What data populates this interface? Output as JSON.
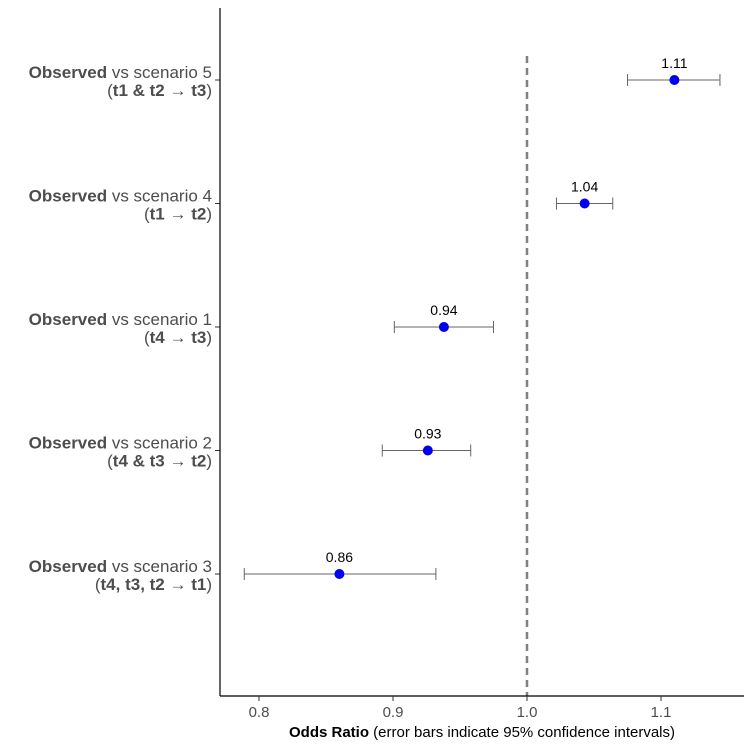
{
  "chart_data": {
    "type": "forest",
    "x_axis": {
      "title_bold": "Odds Ratio",
      "title_rest": " (error bars indicate 95% confidence intervals)",
      "ticks": [
        0.8,
        0.9,
        1.0,
        1.1
      ],
      "tick_labels": [
        "0.8",
        "0.9",
        "1.0",
        "1.1"
      ],
      "xlim": [
        0.77,
        1.16
      ]
    },
    "reference_line": {
      "x": 1.0,
      "style": "dashed",
      "color": "#808080"
    },
    "grid": false,
    "point_color": "#0000ee",
    "errorbar_color": "#666666",
    "rows": [
      {
        "label_bold": "Observed",
        "label_rest": " vs scenario 5",
        "sub_open": "(",
        "sub_bold": "t1 & t2 → t3",
        "sub_close": ")",
        "estimate": 1.11,
        "lower": 1.075,
        "upper": 1.144,
        "value_label": "1.11"
      },
      {
        "label_bold": "Observed",
        "label_rest": " vs scenario 4",
        "sub_open": "(",
        "sub_bold": "t1 → t2",
        "sub_close": ")",
        "estimate": 1.043,
        "lower": 1.022,
        "upper": 1.064,
        "value_label": "1.04"
      },
      {
        "label_bold": "Observed",
        "label_rest": " vs scenario 1",
        "sub_open": "(",
        "sub_bold": "t4 → t3",
        "sub_close": ")",
        "estimate": 0.938,
        "lower": 0.901,
        "upper": 0.975,
        "value_label": "0.94"
      },
      {
        "label_bold": "Observed",
        "label_rest": " vs scenario 2",
        "sub_open": "(",
        "sub_bold": "t4 & t3 → t2",
        "sub_close": ")",
        "estimate": 0.926,
        "lower": 0.892,
        "upper": 0.958,
        "value_label": "0.93"
      },
      {
        "label_bold": "Observed",
        "label_rest": " vs scenario 3",
        "sub_open": "(",
        "sub_bold": "t4, t3, t2 → t1",
        "sub_close": ")",
        "estimate": 0.86,
        "lower": 0.789,
        "upper": 0.932,
        "value_label": "0.86"
      }
    ]
  }
}
